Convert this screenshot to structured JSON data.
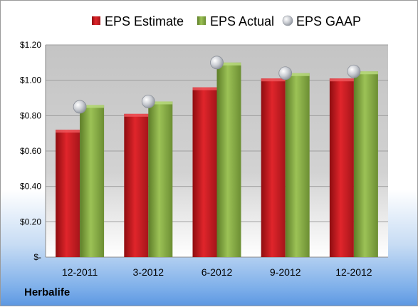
{
  "company": "Herbalife",
  "colors": {
    "estimate": "#c8141b",
    "actual": "#8aac46",
    "gaap": "#c0c4cc"
  },
  "chart_data": {
    "type": "bar",
    "categories": [
      "12-2011",
      "3-2012",
      "6-2012",
      "9-2012",
      "12-2012"
    ],
    "series": [
      {
        "name": "EPS Estimate",
        "values": [
          0.72,
          0.81,
          0.96,
          1.01,
          1.01
        ]
      },
      {
        "name": "EPS Actual",
        "values": [
          0.86,
          0.88,
          1.1,
          1.04,
          1.05
        ]
      },
      {
        "name": "EPS GAAP",
        "values": [
          0.85,
          0.88,
          1.1,
          1.04,
          1.05
        ],
        "marker": "circle"
      }
    ],
    "yticks": [
      "$-",
      "$0.20",
      "$0.40",
      "$0.60",
      "$0.80",
      "$1.00",
      "$1.20"
    ],
    "ylim": [
      0,
      1.2
    ],
    "grid": true,
    "legend": "top"
  }
}
